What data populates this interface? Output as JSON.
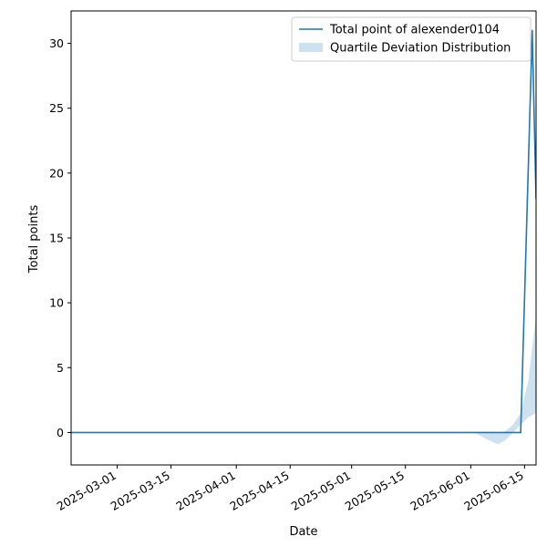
{
  "chart_data": {
    "type": "line",
    "title": "",
    "xlabel": "Date",
    "ylabel": "Total points",
    "x_tick_labels": [
      "2025-03-01",
      "2025-03-15",
      "2025-04-01",
      "2025-04-15",
      "2025-05-01",
      "2025-05-15",
      "2025-06-01",
      "2025-06-15"
    ],
    "xlim": [
      "2025-02-17",
      "2025-06-18"
    ],
    "ylim": [
      -2.5,
      32.5
    ],
    "y_ticks": [
      0,
      5,
      10,
      15,
      20,
      25,
      30
    ],
    "grid": false,
    "legend_position": "top-right",
    "series": [
      {
        "name": "Total point of alexender0104",
        "kind": "line",
        "color": "#1f77b4",
        "points": [
          {
            "x": "2025-02-17",
            "y": 0
          },
          {
            "x": "2025-06-14",
            "y": 0
          },
          {
            "x": "2025-06-17",
            "y": 31
          },
          {
            "x": "2025-06-18",
            "y": 18
          }
        ]
      },
      {
        "name": "Quartile Deviation Distribution",
        "kind": "band",
        "color": "#1f77b4",
        "opacity": 0.22,
        "points": [
          {
            "x": "2025-06-02",
            "lower": 0,
            "upper": 0
          },
          {
            "x": "2025-06-05",
            "lower": -0.5,
            "upper": 0
          },
          {
            "x": "2025-06-08",
            "lower": -0.9,
            "upper": 0
          },
          {
            "x": "2025-06-10",
            "lower": -0.6,
            "upper": 0.1
          },
          {
            "x": "2025-06-12",
            "lower": 0,
            "upper": 0.6
          },
          {
            "x": "2025-06-14",
            "lower": 0.6,
            "upper": 1.5
          },
          {
            "x": "2025-06-16",
            "lower": 1.2,
            "upper": 4.0
          },
          {
            "x": "2025-06-18",
            "lower": 1.5,
            "upper": 9.0
          }
        ]
      }
    ]
  }
}
